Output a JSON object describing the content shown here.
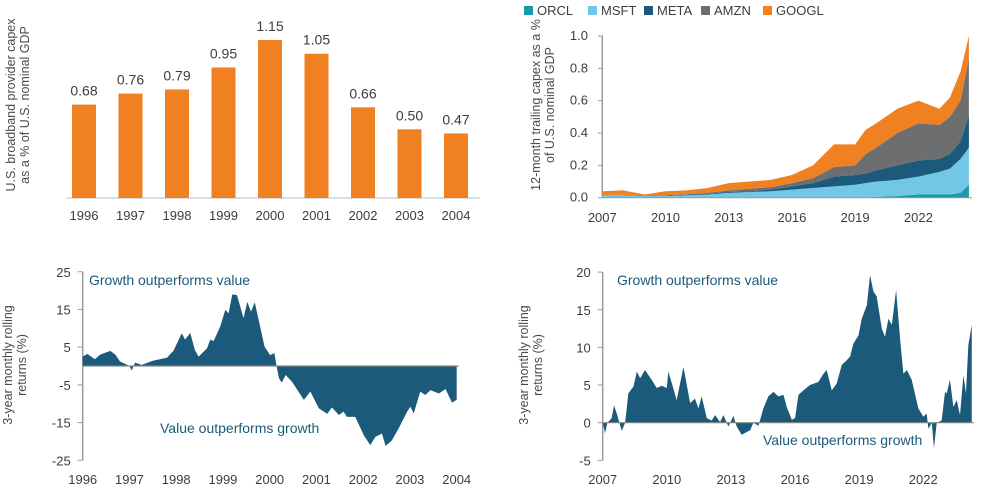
{
  "colors": {
    "orange": "#F08122",
    "navy": "#1B5A7A",
    "orcl": "#1C98A6",
    "msft": "#72C7E7",
    "meta": "#1B5A7A",
    "amzn": "#6D6E70",
    "googl": "#F08122",
    "axis": "#9a9a9a"
  },
  "chart_data": [
    {
      "type": "bar",
      "ylabel": "U.S. broadband provider capex as a % of U.S. nominal GDP",
      "ylabel_lines": [
        "U.S. broadband provider capex",
        "as a % of U.S. nominal GDP"
      ],
      "categories": [
        "1996",
        "1997",
        "1998",
        "1999",
        "2000",
        "2001",
        "2002",
        "2003",
        "2004"
      ],
      "values": [
        0.68,
        0.76,
        0.79,
        0.95,
        1.15,
        1.05,
        0.66,
        0.5,
        0.47
      ],
      "value_labels": [
        "0.68",
        "0.76",
        "0.79",
        "0.95",
        "1.15",
        "1.05",
        "0.66",
        "0.50",
        "0.47"
      ],
      "ylim": [
        0,
        1.15
      ],
      "grid": false
    },
    {
      "type": "area",
      "stacked": true,
      "ylabel": "12-month trailing capex as a % of U.S. nominal GDP",
      "ylabel_lines": [
        "12-month trailing capex as a %",
        "of U.S. nominal GDP"
      ],
      "legend_position": "top",
      "ylim": [
        0,
        1.0
      ],
      "yticks": [
        "0.0",
        "0.2",
        "0.4",
        "0.6",
        "0.8",
        "1.0"
      ],
      "xticks": [
        "2007",
        "2010",
        "2013",
        "2016",
        "2019",
        "2022"
      ],
      "x": [
        2007,
        2008,
        2009,
        2010,
        2011,
        2012,
        2013,
        2014,
        2015,
        2016,
        2017,
        2018,
        2019,
        2019.5,
        2020,
        2021,
        2022,
        2023,
        2023.5,
        2024,
        2024.4
      ],
      "series": [
        {
          "name": "ORCL",
          "values": [
            0,
            0,
            0,
            0,
            0,
            0,
            0,
            0,
            0,
            0,
            0,
            0,
            0,
            0,
            0.005,
            0.01,
            0.02,
            0.02,
            0.02,
            0.03,
            0.08
          ]
        },
        {
          "name": "MSFT",
          "values": [
            0.015,
            0.015,
            0.01,
            0.01,
            0.015,
            0.02,
            0.03,
            0.035,
            0.04,
            0.05,
            0.06,
            0.07,
            0.08,
            0.09,
            0.095,
            0.1,
            0.11,
            0.14,
            0.16,
            0.21,
            0.23
          ]
        },
        {
          "name": "META",
          "values": [
            0,
            0,
            0,
            0.002,
            0.003,
            0.005,
            0.005,
            0.005,
            0.01,
            0.02,
            0.03,
            0.06,
            0.06,
            0.06,
            0.07,
            0.09,
            0.1,
            0.08,
            0.09,
            0.11,
            0.2
          ]
        },
        {
          "name": "AMZN",
          "values": [
            0.002,
            0.003,
            0.002,
            0.003,
            0.004,
            0.005,
            0.01,
            0.015,
            0.015,
            0.02,
            0.03,
            0.06,
            0.06,
            0.12,
            0.14,
            0.2,
            0.23,
            0.21,
            0.23,
            0.25,
            0.35
          ]
        },
        {
          "name": "GOOGL",
          "values": [
            0.023,
            0.027,
            0.008,
            0.025,
            0.023,
            0.03,
            0.045,
            0.045,
            0.045,
            0.05,
            0.08,
            0.14,
            0.13,
            0.15,
            0.15,
            0.15,
            0.14,
            0.1,
            0.12,
            0.18,
            0.14
          ]
        }
      ]
    },
    {
      "type": "area",
      "ylabel": "3-year monthly rolling returns (%)",
      "ylabel_lines": [
        "3-year monthly rolling",
        "returns (%)"
      ],
      "ylim": [
        -25,
        25
      ],
      "yticks": [
        "25",
        "15",
        "5",
        "-5",
        "-15",
        "-25"
      ],
      "xticks": [
        "1996",
        "1997",
        "1998",
        "1999",
        "2000",
        "2001",
        "2002",
        "2003",
        "2004"
      ],
      "annotations": [
        "Growth outperforms value",
        "Value outperforms growth"
      ],
      "x": [
        1996.0,
        1996.1,
        1996.26,
        1996.37,
        1996.59,
        1996.7,
        1996.8,
        1997.0,
        1997.05,
        1997.12,
        1997.26,
        1997.5,
        1997.8,
        1997.94,
        1998.12,
        1998.19,
        1998.3,
        1998.4,
        1998.48,
        1998.66,
        1998.73,
        1998.8,
        1998.94,
        1999.05,
        1999.12,
        1999.2,
        1999.3,
        1999.44,
        1999.52,
        1999.6,
        1999.68,
        1999.78,
        1999.89,
        2000.01,
        2000.1,
        2000.15,
        2000.2,
        2000.26,
        2000.34,
        2000.48,
        2000.73,
        2000.87,
        2001.05,
        2001.23,
        2001.33,
        2001.48,
        2001.58,
        2001.65,
        2001.83,
        2002.01,
        2002.15,
        2002.26,
        2002.4,
        2002.48,
        2002.61,
        2002.76,
        2002.94,
        2003.01,
        2003.08,
        2003.22,
        2003.33,
        2003.44,
        2003.62,
        2003.76,
        2003.9,
        2004.0
      ],
      "values": [
        2.5,
        3.2,
        1.8,
        3,
        4,
        3,
        1.2,
        0,
        -1.2,
        0.9,
        0.3,
        1.4,
        2.2,
        4,
        8.7,
        7,
        8.8,
        4.2,
        2.5,
        4.7,
        7,
        6.6,
        10.4,
        14.9,
        14,
        19,
        18.8,
        12.7,
        17,
        14.4,
        16.9,
        11.3,
        5.1,
        2.9,
        3.4,
        -0.2,
        -3.3,
        -4.4,
        -2.4,
        -4.2,
        -9,
        -6.8,
        -11.2,
        -12.7,
        -11,
        -13,
        -12.1,
        -13.5,
        -13.5,
        -18.3,
        -21,
        -18.8,
        -17.9,
        -21.2,
        -19.8,
        -16.5,
        -12.1,
        -10.8,
        -12.6,
        -6.8,
        -7.7,
        -6.4,
        -7.3,
        -6.1,
        -9.7,
        -9
      ]
    },
    {
      "type": "area",
      "ylabel": "3-year monthly rolling returns (%)",
      "ylabel_lines": [
        "3-year monthly rolling",
        "returns (%)"
      ],
      "ylim": [
        -5,
        20
      ],
      "yticks": [
        "20",
        "15",
        "10",
        "5",
        "0",
        "-5"
      ],
      "xticks": [
        "2007",
        "2010",
        "2013",
        "2016",
        "2019",
        "2022"
      ],
      "annotations": [
        "Growth outperforms value",
        "Value outperforms growth"
      ],
      "x": [
        2007.0,
        2007.11,
        2007.22,
        2007.42,
        2007.53,
        2007.66,
        2007.89,
        2008.05,
        2008.2,
        2008.44,
        2008.6,
        2008.75,
        2008.98,
        2009.29,
        2009.53,
        2009.76,
        2010.0,
        2010.07,
        2010.3,
        2010.46,
        2010.78,
        2011.09,
        2011.32,
        2011.48,
        2011.63,
        2011.87,
        2012.1,
        2012.26,
        2012.49,
        2012.65,
        2012.88,
        2013.12,
        2013.27,
        2013.5,
        2013.9,
        2014.05,
        2014.29,
        2014.52,
        2014.75,
        2014.99,
        2015.22,
        2015.46,
        2015.61,
        2015.85,
        2016.0,
        2016.16,
        2016.39,
        2016.7,
        2017.09,
        2017.33,
        2017.48,
        2017.72,
        2017.95,
        2018.19,
        2018.42,
        2018.58,
        2018.73,
        2018.97,
        2019.12,
        2019.36,
        2019.51,
        2019.67,
        2019.82,
        2020.06,
        2020.21,
        2020.37,
        2020.53,
        2020.73,
        2020.92,
        2021.07,
        2021.23,
        2021.46,
        2021.77,
        2022.0,
        2022.16,
        2022.24,
        2022.4,
        2022.5,
        2022.63,
        2022.86,
        2023.02,
        2023.1,
        2023.25,
        2023.41,
        2023.57,
        2023.72,
        2023.88,
        2024.0,
        2024.11,
        2024.27
      ],
      "values": [
        0,
        -1.4,
        0,
        0.6,
        2.3,
        1.2,
        -1.1,
        0,
        3.9,
        4.8,
        6.8,
        5.9,
        7,
        5.7,
        4.6,
        4.9,
        4.6,
        6.8,
        4.6,
        3,
        7.4,
        2.6,
        3.2,
        1.9,
        3.5,
        0.6,
        0.3,
        1,
        0.1,
        1,
        -0.5,
        0.9,
        -0.5,
        -1.6,
        -1,
        0,
        -0.4,
        1.9,
        3.5,
        4.1,
        3.5,
        3.7,
        2.1,
        0.4,
        0.6,
        3.7,
        4.3,
        5,
        5.4,
        6.5,
        7,
        4.3,
        5.2,
        7.7,
        8.3,
        8.8,
        10.5,
        11.6,
        13.8,
        15.6,
        19.6,
        17.4,
        16.8,
        12.5,
        11.4,
        13.8,
        13,
        17.6,
        11,
        6.5,
        7,
        5.7,
        1.9,
        0.8,
        1.2,
        -0.8,
        0,
        -3.4,
        0,
        0.3,
        4.1,
        3.9,
        5.7,
        2.1,
        3,
        1,
        6.3,
        3.9,
        10.3,
        13
      ]
    }
  ]
}
